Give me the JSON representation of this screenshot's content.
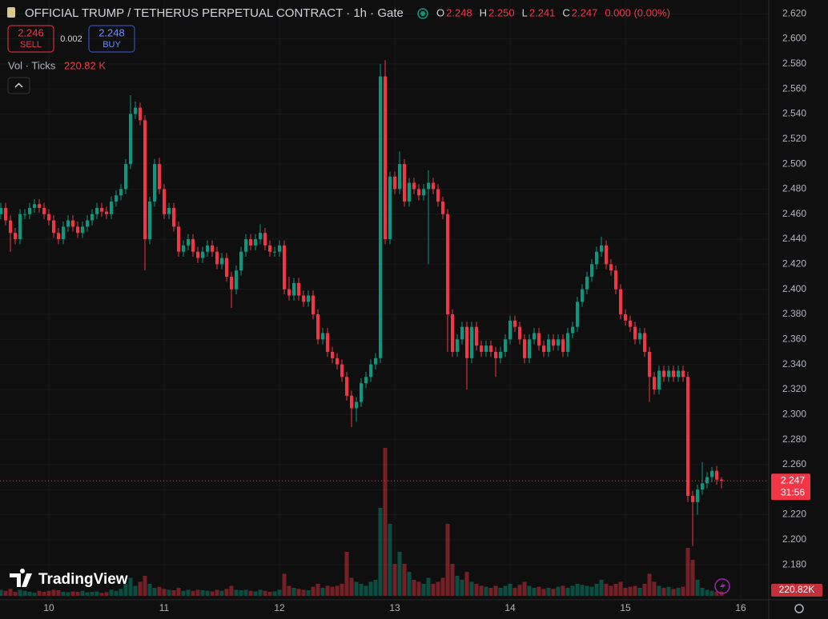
{
  "ui": {
    "title": "OFFICIAL TRUMP / TETHERUS PERPETUAL CONTRACT · 1h · Gate",
    "ohlc": [
      {
        "key": "O",
        "value": "2.248"
      },
      {
        "key": "H",
        "value": "2.250"
      },
      {
        "key": "L",
        "value": "2.241"
      },
      {
        "key": "C",
        "value": "2.247"
      }
    ],
    "change": "0.000 (0.00%)",
    "sell_price": "2.246",
    "sell": "SELL",
    "spread": "0.002",
    "buy_price": "2.248",
    "buy": "BUY",
    "volume_legend": "Vol · Ticks",
    "volume_legend_value": "220.82 K",
    "brand": "TradingView"
  },
  "chart_data": {
    "type": "candlestick",
    "up_color": "#089981",
    "down_color": "#f23645",
    "grid": true,
    "categories": [
      null,
      null,
      null,
      null,
      null,
      null,
      null,
      null,
      null,
      null,
      "10",
      null,
      null,
      null,
      null,
      null,
      null,
      null,
      null,
      null,
      null,
      null,
      null,
      null,
      null,
      null,
      null,
      null,
      null,
      null,
      null,
      null,
      null,
      null,
      "11",
      null,
      null,
      null,
      null,
      null,
      null,
      null,
      null,
      null,
      null,
      null,
      null,
      null,
      null,
      null,
      null,
      null,
      null,
      null,
      null,
      null,
      null,
      null,
      "12",
      null,
      null,
      null,
      null,
      null,
      null,
      null,
      null,
      null,
      null,
      null,
      null,
      null,
      null,
      null,
      null,
      null,
      null,
      null,
      null,
      null,
      null,
      null,
      "13",
      null,
      null,
      null,
      null,
      null,
      null,
      null,
      null,
      null,
      null,
      null,
      null,
      null,
      null,
      null,
      null,
      null,
      null,
      null,
      null,
      null,
      null,
      null,
      "14",
      null,
      null,
      null,
      null,
      null,
      null,
      null,
      null,
      null,
      null,
      null,
      null,
      null,
      null,
      null,
      null,
      null,
      null,
      null,
      null,
      null,
      null,
      null,
      "15",
      null,
      null,
      null,
      null,
      null,
      null,
      null,
      null,
      null,
      null,
      null,
      null,
      null,
      null,
      null,
      null,
      null,
      null,
      null,
      null,
      null,
      null,
      null,
      "16"
    ],
    "open": [
      2.46,
      2.465,
      2.455,
      2.445,
      2.44,
      2.46,
      2.46,
      2.465,
      2.468,
      2.465,
      2.46,
      2.455,
      2.445,
      2.44,
      2.45,
      2.455,
      2.45,
      2.445,
      2.45,
      2.455,
      2.46,
      2.465,
      2.462,
      2.46,
      2.47,
      2.475,
      2.48,
      2.5,
      2.54,
      2.545,
      2.535,
      2.44,
      2.47,
      2.5,
      2.48,
      2.46,
      2.465,
      2.45,
      2.43,
      2.435,
      2.44,
      2.43,
      2.425,
      2.43,
      2.435,
      2.43,
      2.42,
      2.425,
      2.41,
      2.4,
      2.415,
      2.43,
      2.44,
      2.435,
      2.44,
      2.445,
      2.435,
      2.43,
      2.43,
      2.435,
      2.4,
      2.395,
      2.405,
      2.395,
      2.39,
      2.395,
      2.38,
      2.36,
      2.365,
      2.35,
      2.345,
      2.34,
      2.33,
      2.315,
      2.305,
      2.31,
      2.325,
      2.33,
      2.34,
      2.345,
      2.57,
      2.44,
      2.49,
      2.48,
      2.5,
      2.47,
      2.485,
      2.48,
      2.475,
      2.48,
      2.485,
      2.48,
      2.47,
      2.46,
      2.38,
      2.35,
      2.36,
      2.37,
      2.345,
      2.37,
      2.355,
      2.35,
      2.355,
      2.35,
      2.345,
      2.35,
      2.36,
      2.375,
      2.37,
      2.36,
      2.345,
      2.36,
      2.365,
      2.355,
      2.35,
      2.36,
      2.355,
      2.36,
      2.35,
      2.365,
      2.37,
      2.39,
      2.4,
      2.41,
      2.42,
      2.43,
      2.435,
      2.42,
      2.415,
      2.4,
      2.38,
      2.375,
      2.37,
      2.36,
      2.365,
      2.35,
      2.33,
      2.32,
      2.335,
      2.33,
      2.335,
      2.33,
      2.335,
      2.33,
      2.235,
      2.23,
      2.24,
      2.245,
      2.25,
      2.255,
      2.248,
      null,
      null,
      null,
      null
    ],
    "high": [
      2.469,
      2.469,
      2.459,
      2.449,
      2.464,
      2.464,
      2.469,
      2.472,
      2.472,
      2.469,
      2.464,
      2.459,
      2.449,
      2.454,
      2.459,
      2.459,
      2.454,
      2.454,
      2.459,
      2.464,
      2.469,
      2.469,
      2.466,
      2.474,
      2.479,
      2.484,
      2.504,
      2.555,
      2.55,
      2.549,
      2.539,
      2.474,
      2.504,
      2.505,
      2.484,
      2.469,
      2.469,
      2.454,
      2.439,
      2.444,
      2.444,
      2.434,
      2.434,
      2.439,
      2.439,
      2.434,
      2.429,
      2.429,
      2.414,
      2.419,
      2.434,
      2.444,
      2.444,
      2.444,
      2.452,
      2.449,
      2.439,
      2.434,
      2.439,
      2.439,
      2.41,
      2.409,
      2.409,
      2.399,
      2.399,
      2.399,
      2.384,
      2.369,
      2.369,
      2.354,
      2.349,
      2.344,
      2.334,
      2.319,
      2.314,
      2.329,
      2.334,
      2.344,
      2.349,
      2.58,
      2.583,
      2.494,
      2.494,
      2.51,
      2.504,
      2.489,
      2.489,
      2.484,
      2.484,
      2.495,
      2.489,
      2.484,
      2.474,
      2.464,
      2.384,
      2.364,
      2.374,
      2.374,
      2.374,
      2.374,
      2.359,
      2.359,
      2.359,
      2.354,
      2.354,
      2.364,
      2.379,
      2.379,
      2.374,
      2.364,
      2.364,
      2.369,
      2.369,
      2.359,
      2.364,
      2.364,
      2.364,
      2.364,
      2.369,
      2.374,
      2.394,
      2.404,
      2.414,
      2.424,
      2.434,
      2.442,
      2.439,
      2.424,
      2.419,
      2.404,
      2.384,
      2.379,
      2.374,
      2.369,
      2.369,
      2.354,
      2.334,
      2.339,
      2.339,
      2.339,
      2.339,
      2.339,
      2.339,
      2.334,
      2.239,
      2.244,
      2.262,
      2.254,
      2.258,
      2.259,
      2.25,
      null,
      null,
      null,
      null
    ],
    "low": [
      2.456,
      2.451,
      2.43,
      2.436,
      2.436,
      2.456,
      2.456,
      2.461,
      2.461,
      2.456,
      2.451,
      2.441,
      2.436,
      2.436,
      2.446,
      2.446,
      2.441,
      2.441,
      2.446,
      2.451,
      2.456,
      2.458,
      2.456,
      2.456,
      2.466,
      2.471,
      2.476,
      2.496,
      2.536,
      2.531,
      2.415,
      2.436,
      2.466,
      2.476,
      2.456,
      2.456,
      2.446,
      2.426,
      2.426,
      2.431,
      2.426,
      2.421,
      2.421,
      2.426,
      2.426,
      2.416,
      2.416,
      2.406,
      2.385,
      2.396,
      2.411,
      2.426,
      2.431,
      2.431,
      2.436,
      2.431,
      2.426,
      2.426,
      2.426,
      2.396,
      2.391,
      2.391,
      2.391,
      2.386,
      2.386,
      2.376,
      2.356,
      2.356,
      2.346,
      2.341,
      2.336,
      2.326,
      2.311,
      2.29,
      2.294,
      2.306,
      2.321,
      2.326,
      2.336,
      2.341,
      2.436,
      2.436,
      2.476,
      2.476,
      2.466,
      2.466,
      2.476,
      2.471,
      2.471,
      2.42,
      2.476,
      2.466,
      2.456,
      2.35,
      2.346,
      2.346,
      2.356,
      2.32,
      2.341,
      2.351,
      2.346,
      2.346,
      2.346,
      2.33,
      2.341,
      2.346,
      2.356,
      2.366,
      2.356,
      2.341,
      2.341,
      2.356,
      2.351,
      2.346,
      2.346,
      2.351,
      2.351,
      2.346,
      2.346,
      2.361,
      2.366,
      2.386,
      2.396,
      2.406,
      2.416,
      2.426,
      2.416,
      2.411,
      2.396,
      2.376,
      2.371,
      2.366,
      2.356,
      2.356,
      2.346,
      2.31,
      2.316,
      2.316,
      2.326,
      2.326,
      2.326,
      2.326,
      2.326,
      2.23,
      2.195,
      2.22,
      2.236,
      2.241,
      2.246,
      2.244,
      2.241,
      null,
      null,
      null,
      null
    ],
    "close": [
      2.465,
      2.455,
      2.445,
      2.44,
      2.46,
      2.46,
      2.465,
      2.468,
      2.465,
      2.46,
      2.455,
      2.445,
      2.44,
      2.45,
      2.455,
      2.45,
      2.445,
      2.45,
      2.455,
      2.46,
      2.465,
      2.462,
      2.46,
      2.47,
      2.475,
      2.48,
      2.5,
      2.54,
      2.545,
      2.535,
      2.44,
      2.47,
      2.5,
      2.48,
      2.46,
      2.465,
      2.45,
      2.43,
      2.435,
      2.44,
      2.43,
      2.425,
      2.43,
      2.435,
      2.43,
      2.42,
      2.425,
      2.41,
      2.4,
      2.415,
      2.43,
      2.44,
      2.435,
      2.44,
      2.445,
      2.435,
      2.43,
      2.43,
      2.435,
      2.4,
      2.395,
      2.405,
      2.395,
      2.39,
      2.395,
      2.38,
      2.36,
      2.365,
      2.35,
      2.345,
      2.34,
      2.33,
      2.315,
      2.305,
      2.31,
      2.325,
      2.33,
      2.34,
      2.345,
      2.57,
      2.44,
      2.49,
      2.48,
      2.5,
      2.47,
      2.485,
      2.48,
      2.475,
      2.48,
      2.485,
      2.48,
      2.47,
      2.46,
      2.38,
      2.35,
      2.36,
      2.37,
      2.345,
      2.37,
      2.355,
      2.35,
      2.355,
      2.35,
      2.345,
      2.35,
      2.36,
      2.375,
      2.37,
      2.36,
      2.345,
      2.36,
      2.365,
      2.355,
      2.35,
      2.36,
      2.355,
      2.36,
      2.35,
      2.365,
      2.37,
      2.39,
      2.4,
      2.41,
      2.42,
      2.43,
      2.435,
      2.42,
      2.415,
      2.4,
      2.38,
      2.375,
      2.37,
      2.36,
      2.365,
      2.35,
      2.33,
      2.32,
      2.335,
      2.33,
      2.335,
      2.33,
      2.335,
      2.33,
      2.235,
      2.23,
      2.24,
      2.245,
      2.25,
      2.255,
      2.248,
      2.247,
      null,
      null,
      null,
      null
    ],
    "volume": [
      300000,
      250000,
      350000,
      200000,
      300000,
      250000,
      200000,
      150000,
      250000,
      200000,
      250000,
      300000,
      280000,
      200000,
      180000,
      220000,
      200000,
      250000,
      180000,
      200000,
      220000,
      150000,
      180000,
      300000,
      250000,
      350000,
      600000,
      900000,
      500000,
      700000,
      1000000,
      600000,
      400000,
      450000,
      350000,
      300000,
      280000,
      400000,
      250000,
      300000,
      250000,
      300000,
      280000,
      250000,
      220000,
      300000,
      250000,
      350000,
      500000,
      300000,
      280000,
      300000,
      250000,
      220000,
      300000,
      250000,
      200000,
      220000,
      300000,
      1100000,
      500000,
      400000,
      350000,
      300000,
      280000,
      450000,
      600000,
      400000,
      500000,
      450000,
      500000,
      600000,
      2200000,
      900000,
      700000,
      600000,
      500000,
      700000,
      800000,
      4400000,
      7400000,
      3600000,
      1600000,
      2200000,
      1600000,
      1200000,
      800000,
      700000,
      600000,
      900000,
      600000,
      700000,
      900000,
      3600000,
      1600000,
      1000000,
      800000,
      1200000,
      700000,
      600000,
      500000,
      450000,
      400000,
      500000,
      400000,
      500000,
      600000,
      400000,
      550000,
      700000,
      500000,
      400000,
      450000,
      350000,
      400000,
      350000,
      450000,
      500000,
      400000,
      500000,
      600000,
      550000,
      500000,
      450000,
      600000,
      800000,
      600000,
      500000,
      600000,
      700000,
      400000,
      450000,
      500000,
      400000,
      600000,
      1100000,
      700000,
      500000,
      400000,
      450000,
      350000,
      400000,
      450000,
      2400000,
      1800000,
      800000,
      400000,
      300000,
      250000,
      200000,
      220820,
      null,
      null,
      null,
      null
    ],
    "ylim": [
      2.152,
      2.631
    ],
    "yticks": [
      {
        "value": 2.18,
        "label": "2.180"
      },
      {
        "value": 2.2,
        "label": "2.200"
      },
      {
        "value": 2.22,
        "label": "2.220"
      },
      {
        "value": 2.24,
        "label": "2.240"
      },
      {
        "value": 2.26,
        "label": "2.260"
      },
      {
        "value": 2.28,
        "label": "2.280"
      },
      {
        "value": 2.3,
        "label": "2.300"
      },
      {
        "value": 2.32,
        "label": "2.320"
      },
      {
        "value": 2.34,
        "label": "2.340"
      },
      {
        "value": 2.36,
        "label": "2.360"
      },
      {
        "value": 2.38,
        "label": "2.380"
      },
      {
        "value": 2.4,
        "label": "2.400"
      },
      {
        "value": 2.42,
        "label": "2.420"
      },
      {
        "value": 2.44,
        "label": "2.440"
      },
      {
        "value": 2.46,
        "label": "2.460"
      },
      {
        "value": 2.48,
        "label": "2.480"
      },
      {
        "value": 2.5,
        "label": "2.500"
      },
      {
        "value": 2.52,
        "label": "2.520"
      },
      {
        "value": 2.54,
        "label": "2.540"
      },
      {
        "value": 2.56,
        "label": "2.560"
      },
      {
        "value": 2.58,
        "label": "2.580"
      },
      {
        "value": 2.6,
        "label": "2.600"
      },
      {
        "value": 2.62,
        "label": "2.620"
      }
    ],
    "last_price_label": "2.247",
    "countdown": "31:56",
    "volume_label": "220.82K"
  }
}
